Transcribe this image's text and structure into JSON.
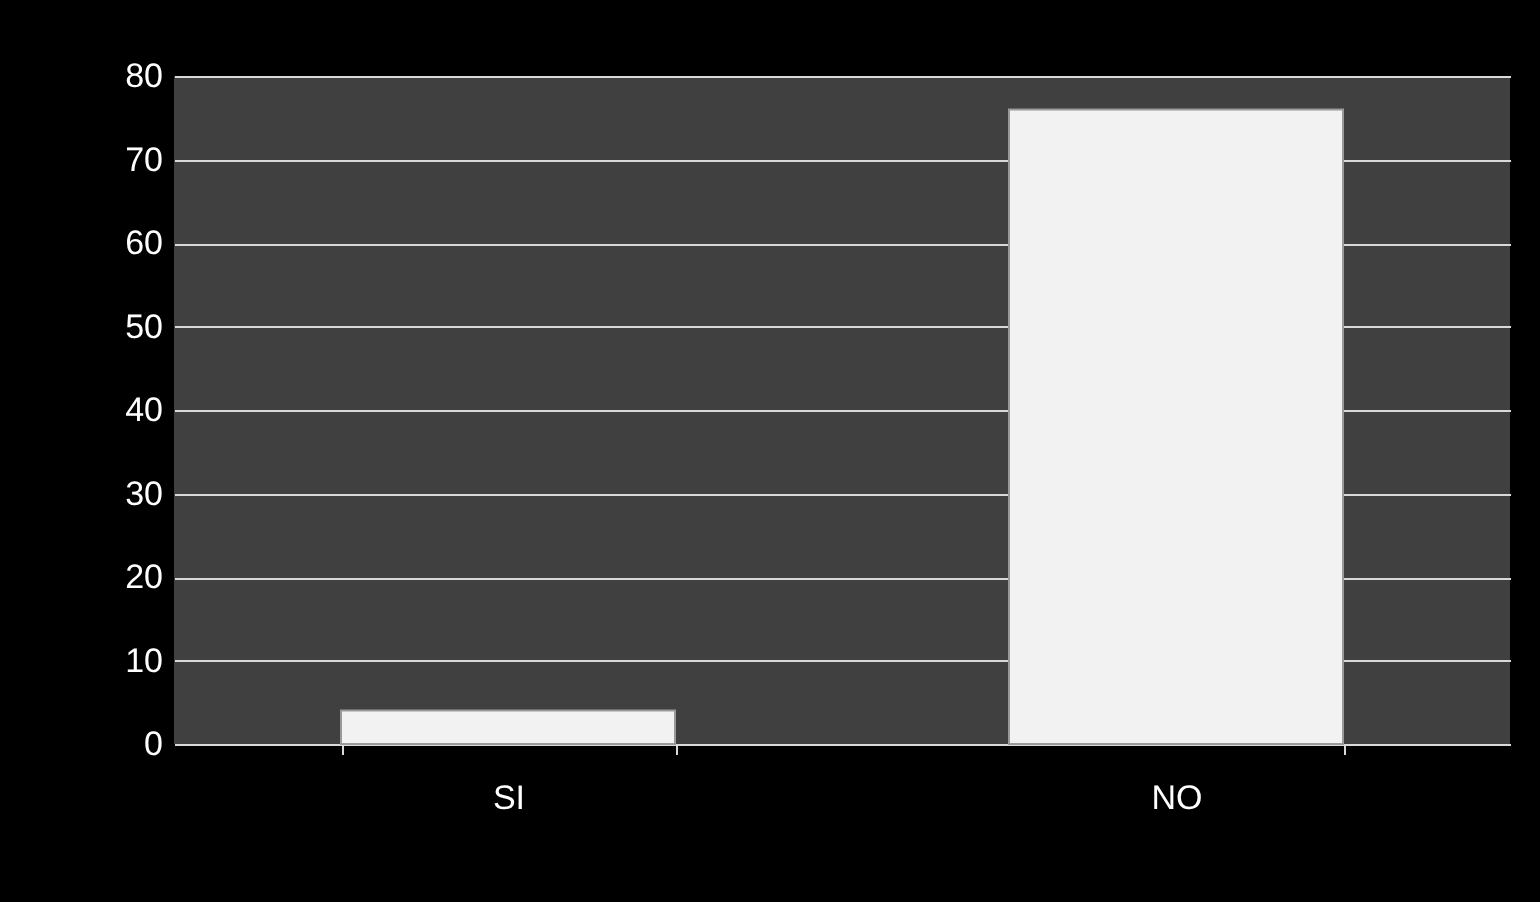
{
  "chart_data": {
    "type": "bar",
    "categories": [
      "SI",
      "NO"
    ],
    "values": [
      4,
      76
    ],
    "color": "#f2f2f2",
    "ylim": [
      0,
      80
    ],
    "yticks": [
      0,
      10,
      20,
      30,
      40,
      50,
      60,
      70,
      80
    ],
    "grid": "y"
  }
}
